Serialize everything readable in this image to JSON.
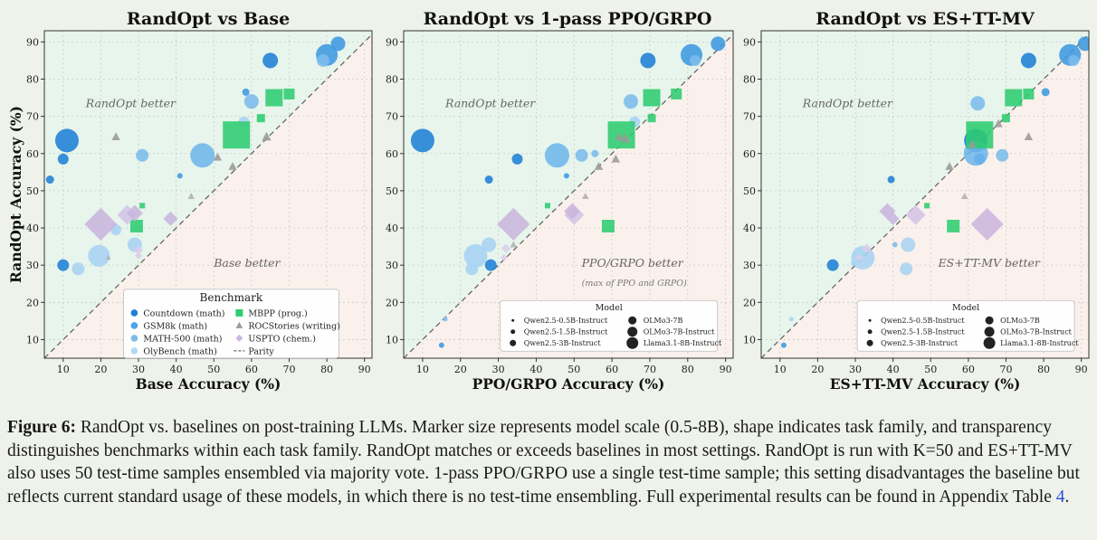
{
  "chart_data": [
    {
      "type": "scatter",
      "title": "RandOpt vs Base",
      "xlabel": "Base Accuracy (%)",
      "ylabel": "RandOpt Accuracy (%)",
      "xlim": [
        5,
        92
      ],
      "ylim": [
        5,
        93
      ],
      "xticks": [
        10,
        20,
        30,
        40,
        50,
        60,
        70,
        80,
        90
      ],
      "yticks": [
        10,
        20,
        30,
        40,
        50,
        60,
        70,
        80,
        90
      ],
      "region_top": "RandOpt better",
      "region_bottom": "Base better",
      "region_bottom_sub": "",
      "legend": {
        "kind": "benchmark",
        "title": "Benchmark",
        "entries": [
          {
            "label": "Countdown (math)",
            "marker": "circle",
            "color": "#1f7fd6"
          },
          {
            "label": "MBPP (prog.)",
            "marker": "square",
            "color": "#2ecc71"
          },
          {
            "label": "GSM8k (math)",
            "marker": "circle",
            "color": "#4da3e6"
          },
          {
            "label": "ROCStories (writing)",
            "marker": "triangle",
            "color": "#9a9a9a"
          },
          {
            "label": "MATH-500 (math)",
            "marker": "circle",
            "color": "#7cbcec"
          },
          {
            "label": "USPTO (chem.)",
            "marker": "diamond",
            "color": "#c9b5dd"
          },
          {
            "label": "OlyBench (math)",
            "marker": "circle",
            "color": "#b3daf5"
          },
          {
            "label": "Parity",
            "marker": "line",
            "color": "#666666"
          }
        ]
      },
      "points": [
        {
          "x": 11,
          "y": 63.5,
          "s": 13,
          "m": "circle",
          "c": "#1f7fd6"
        },
        {
          "x": 65,
          "y": 85,
          "s": 8.5,
          "m": "circle",
          "c": "#1f7fd6"
        },
        {
          "x": 83,
          "y": 89.5,
          "s": 8,
          "m": "circle",
          "c": "#3d98e0"
        },
        {
          "x": 80,
          "y": 86.5,
          "s": 12,
          "m": "circle",
          "c": "#3d98e0"
        },
        {
          "x": 79,
          "y": 85,
          "s": 7,
          "m": "circle",
          "c": "#7cbcec"
        },
        {
          "x": 10,
          "y": 58.5,
          "s": 6,
          "m": "circle",
          "c": "#1f7fd6"
        },
        {
          "x": 6.5,
          "y": 53,
          "s": 4.5,
          "m": "circle",
          "c": "#1f7fd6"
        },
        {
          "x": 10,
          "y": 30,
          "s": 6.5,
          "m": "circle",
          "c": "#1f7fd6"
        },
        {
          "x": 14,
          "y": 29,
          "s": 7,
          "m": "circle",
          "c": "#a8d3f2"
        },
        {
          "x": 24,
          "y": 39.5,
          "s": 6,
          "m": "circle",
          "c": "#a8d3f2"
        },
        {
          "x": 19.5,
          "y": 32.5,
          "s": 12,
          "m": "circle",
          "c": "#a8d3f2"
        },
        {
          "x": 29,
          "y": 35.5,
          "s": 8,
          "m": "circle",
          "c": "#a8d3f2"
        },
        {
          "x": 31,
          "y": 59.5,
          "s": 7,
          "m": "circle",
          "c": "#7cbcec"
        },
        {
          "x": 47,
          "y": 59.5,
          "s": 13.5,
          "m": "circle",
          "c": "#6fb6ea"
        },
        {
          "x": 58.5,
          "y": 76.5,
          "s": 4,
          "m": "circle",
          "c": "#3d98e0"
        },
        {
          "x": 60,
          "y": 74,
          "s": 8,
          "m": "circle",
          "c": "#7cbcec"
        },
        {
          "x": 58,
          "y": 68.5,
          "s": 6,
          "m": "circle",
          "c": "#a8d3f2"
        },
        {
          "x": 41,
          "y": 54,
          "s": 3,
          "m": "circle",
          "c": "#3d98e0"
        },
        {
          "x": 56,
          "y": 65,
          "s": 15,
          "m": "square",
          "c": "#2ecc71"
        },
        {
          "x": 66,
          "y": 75,
          "s": 9.5,
          "m": "square",
          "c": "#2ecc71"
        },
        {
          "x": 70,
          "y": 76,
          "s": 6,
          "m": "square",
          "c": "#2ecc71"
        },
        {
          "x": 62.5,
          "y": 69.5,
          "s": 4.5,
          "m": "square",
          "c": "#2ecc71"
        },
        {
          "x": 29.5,
          "y": 40.5,
          "s": 7,
          "m": "square",
          "c": "#2ecc71"
        },
        {
          "x": 31,
          "y": 46,
          "s": 3,
          "m": "square",
          "c": "#2ecc71"
        },
        {
          "x": 24,
          "y": 64.5,
          "s": 5,
          "m": "triangle",
          "c": "#9a9a9a"
        },
        {
          "x": 64,
          "y": 64.5,
          "s": 5.5,
          "m": "triangle",
          "c": "#9a9a9a"
        },
        {
          "x": 51,
          "y": 59,
          "s": 5,
          "m": "triangle",
          "c": "#9a9a9a"
        },
        {
          "x": 55,
          "y": 56.5,
          "s": 5,
          "m": "triangle",
          "c": "#9a9a9a"
        },
        {
          "x": 44,
          "y": 48.5,
          "s": 4,
          "m": "triangle",
          "c": "#b0b0b0"
        },
        {
          "x": 22,
          "y": 32,
          "s": 3,
          "m": "triangle",
          "c": "#b0b0b0"
        },
        {
          "x": 20,
          "y": 41,
          "s": 18,
          "m": "diamond",
          "c": "#c9b5dd"
        },
        {
          "x": 27,
          "y": 43.5,
          "s": 11,
          "m": "diamond",
          "c": "#d4c3e6"
        },
        {
          "x": 29,
          "y": 44,
          "s": 9,
          "m": "diamond",
          "c": "#c9b5dd"
        },
        {
          "x": 38.5,
          "y": 42.5,
          "s": 8,
          "m": "diamond",
          "c": "#c9b5dd"
        },
        {
          "x": 30,
          "y": 34,
          "s": 5,
          "m": "diamond",
          "c": "#dccdea"
        },
        {
          "x": 30,
          "y": 32.5,
          "s": 4,
          "m": "diamond",
          "c": "#dccdea"
        }
      ]
    },
    {
      "type": "scatter",
      "title": "RandOpt vs 1-pass PPO/GRPO",
      "xlabel": "PPO/GRPO Accuracy (%)",
      "ylabel": "",
      "xlim": [
        5,
        92
      ],
      "ylim": [
        5,
        93
      ],
      "xticks": [
        10,
        20,
        30,
        40,
        50,
        60,
        70,
        80,
        90
      ],
      "yticks": [
        10,
        20,
        30,
        40,
        50,
        60,
        70,
        80,
        90
      ],
      "region_top": "RandOpt better",
      "region_bottom": "PPO/GRPO better",
      "region_bottom_sub": "(max of PPO and GRPO)",
      "legend": {
        "kind": "model",
        "title": "Model",
        "entries": [
          {
            "label": "Qwen2.5-0.5B-Instruct",
            "r": 1.5
          },
          {
            "label": "OLMo3-7B",
            "r": 4.5
          },
          {
            "label": "Qwen2.5-1.5B-Instruct",
            "r": 2.5
          },
          {
            "label": "OLMo3-7B-Instruct",
            "r": 5.5
          },
          {
            "label": "Qwen2.5-3B-Instruct",
            "r": 3.5
          },
          {
            "label": "Llama3.1-8B-Instruct",
            "r": 6.5
          }
        ]
      },
      "points": [
        {
          "x": 10,
          "y": 63.5,
          "s": 13,
          "m": "circle",
          "c": "#1f7fd6"
        },
        {
          "x": 69.5,
          "y": 85,
          "s": 8.5,
          "m": "circle",
          "c": "#1f7fd6"
        },
        {
          "x": 88,
          "y": 89.5,
          "s": 8,
          "m": "circle",
          "c": "#3d98e0"
        },
        {
          "x": 81,
          "y": 86.5,
          "s": 12,
          "m": "circle",
          "c": "#3d98e0"
        },
        {
          "x": 82,
          "y": 85,
          "s": 6,
          "m": "circle",
          "c": "#7cbcec"
        },
        {
          "x": 35,
          "y": 58.5,
          "s": 6,
          "m": "circle",
          "c": "#1f7fd6"
        },
        {
          "x": 27.5,
          "y": 53,
          "s": 4.5,
          "m": "circle",
          "c": "#1f7fd6"
        },
        {
          "x": 28,
          "y": 30,
          "s": 6.5,
          "m": "circle",
          "c": "#1f7fd6"
        },
        {
          "x": 15,
          "y": 8.5,
          "s": 3,
          "m": "circle",
          "c": "#3d98e0"
        },
        {
          "x": 16,
          "y": 15.5,
          "s": 2.5,
          "m": "circle",
          "c": "#7cbcec"
        },
        {
          "x": 23,
          "y": 29,
          "s": 7,
          "m": "circle",
          "c": "#a8d3f2"
        },
        {
          "x": 24,
          "y": 32.5,
          "s": 13,
          "m": "circle",
          "c": "#a8d3f2"
        },
        {
          "x": 27.5,
          "y": 35.5,
          "s": 8,
          "m": "circle",
          "c": "#a8d3f2"
        },
        {
          "x": 52,
          "y": 59.5,
          "s": 7,
          "m": "circle",
          "c": "#7cbcec"
        },
        {
          "x": 45.5,
          "y": 59.5,
          "s": 13.5,
          "m": "circle",
          "c": "#6fb6ea"
        },
        {
          "x": 65,
          "y": 74,
          "s": 8,
          "m": "circle",
          "c": "#7cbcec"
        },
        {
          "x": 66,
          "y": 68.5,
          "s": 6,
          "m": "circle",
          "c": "#a8d3f2"
        },
        {
          "x": 48,
          "y": 54,
          "s": 3,
          "m": "circle",
          "c": "#3d98e0"
        },
        {
          "x": 55.5,
          "y": 60,
          "s": 4,
          "m": "circle",
          "c": "#7cbcec"
        },
        {
          "x": 62.5,
          "y": 65,
          "s": 15,
          "m": "square",
          "c": "#2ecc71"
        },
        {
          "x": 70.5,
          "y": 75,
          "s": 9.5,
          "m": "square",
          "c": "#2ecc71"
        },
        {
          "x": 77,
          "y": 76,
          "s": 6,
          "m": "square",
          "c": "#2ecc71"
        },
        {
          "x": 70.5,
          "y": 69.5,
          "s": 4.5,
          "m": "square",
          "c": "#2ecc71"
        },
        {
          "x": 59,
          "y": 40.5,
          "s": 7,
          "m": "square",
          "c": "#2ecc71"
        },
        {
          "x": 43,
          "y": 46,
          "s": 3,
          "m": "square",
          "c": "#2ecc71"
        },
        {
          "x": 62,
          "y": 64.5,
          "s": 5,
          "m": "triangle",
          "c": "#9a9a9a"
        },
        {
          "x": 63.5,
          "y": 64,
          "s": 5.5,
          "m": "triangle",
          "c": "#9a9a9a"
        },
        {
          "x": 61,
          "y": 58.5,
          "s": 5,
          "m": "triangle",
          "c": "#9a9a9a"
        },
        {
          "x": 56.5,
          "y": 56.5,
          "s": 5,
          "m": "triangle",
          "c": "#9a9a9a"
        },
        {
          "x": 53,
          "y": 48.5,
          "s": 4,
          "m": "triangle",
          "c": "#b0b0b0"
        },
        {
          "x": 34,
          "y": 41,
          "s": 18,
          "m": "diamond",
          "c": "#c9b5dd"
        },
        {
          "x": 50,
          "y": 43.5,
          "s": 11,
          "m": "diamond",
          "c": "#d4c3e6"
        },
        {
          "x": 49.5,
          "y": 44.5,
          "s": 9,
          "m": "diamond",
          "c": "#c9b5dd"
        },
        {
          "x": 32,
          "y": 34.5,
          "s": 5,
          "m": "diamond",
          "c": "#dccdea"
        },
        {
          "x": 31.5,
          "y": 32,
          "s": 4,
          "m": "diamond",
          "c": "#dccdea"
        },
        {
          "x": 34,
          "y": 35.5,
          "s": 4,
          "m": "triangle",
          "c": "#b0b0b0"
        }
      ]
    },
    {
      "type": "scatter",
      "title": "RandOpt vs ES+TT-MV",
      "xlabel": "ES+TT-MV Accuracy (%)",
      "ylabel": "",
      "xlim": [
        5,
        92
      ],
      "ylim": [
        5,
        93
      ],
      "xticks": [
        10,
        20,
        30,
        40,
        50,
        60,
        70,
        80,
        90
      ],
      "yticks": [
        10,
        20,
        30,
        40,
        50,
        60,
        70,
        80,
        90
      ],
      "region_top": "RandOpt better",
      "region_bottom": "ES+TT-MV better",
      "region_bottom_sub": "",
      "legend": {
        "kind": "model",
        "title": "Model",
        "entries": [
          {
            "label": "Qwen2.5-0.5B-Instruct",
            "r": 1.5
          },
          {
            "label": "OLMo3-7B",
            "r": 4.5
          },
          {
            "label": "Qwen2.5-1.5B-Instruct",
            "r": 2.5
          },
          {
            "label": "OLMo3-7B-Instruct",
            "r": 5.5
          },
          {
            "label": "Qwen2.5-3B-Instruct",
            "r": 3.5
          },
          {
            "label": "Llama3.1-8B-Instruct",
            "r": 6.5
          }
        ]
      },
      "points": [
        {
          "x": 62,
          "y": 63.5,
          "s": 13,
          "m": "circle",
          "c": "#1f7fd6"
        },
        {
          "x": 76,
          "y": 85,
          "s": 8.5,
          "m": "circle",
          "c": "#1f7fd6"
        },
        {
          "x": 91,
          "y": 89.5,
          "s": 8,
          "m": "circle",
          "c": "#3d98e0"
        },
        {
          "x": 87,
          "y": 86.5,
          "s": 12,
          "m": "circle",
          "c": "#3d98e0"
        },
        {
          "x": 88,
          "y": 85,
          "s": 6,
          "m": "circle",
          "c": "#7cbcec"
        },
        {
          "x": 80.5,
          "y": 76.5,
          "s": 4.5,
          "m": "circle",
          "c": "#3d98e0"
        },
        {
          "x": 62.5,
          "y": 73.5,
          "s": 8,
          "m": "circle",
          "c": "#7cbcec"
        },
        {
          "x": 63,
          "y": 58.5,
          "s": 6,
          "m": "circle",
          "c": "#1f7fd6"
        },
        {
          "x": 62,
          "y": 60,
          "s": 13.5,
          "m": "circle",
          "c": "#6fb6ea"
        },
        {
          "x": 69,
          "y": 59.5,
          "s": 7,
          "m": "circle",
          "c": "#7cbcec"
        },
        {
          "x": 39.5,
          "y": 53,
          "s": 4,
          "m": "circle",
          "c": "#1f7fd6"
        },
        {
          "x": 24,
          "y": 30,
          "s": 6.5,
          "m": "circle",
          "c": "#1f7fd6"
        },
        {
          "x": 13,
          "y": 15.5,
          "s": 2.5,
          "m": "circle",
          "c": "#a8d3f2"
        },
        {
          "x": 11,
          "y": 8.5,
          "s": 3,
          "m": "circle",
          "c": "#3d98e0"
        },
        {
          "x": 32,
          "y": 32,
          "s": 13,
          "m": "circle",
          "c": "#a8d3f2"
        },
        {
          "x": 44,
          "y": 35.5,
          "s": 8,
          "m": "circle",
          "c": "#a8d3f2"
        },
        {
          "x": 43.5,
          "y": 29,
          "s": 7,
          "m": "circle",
          "c": "#a8d3f2"
        },
        {
          "x": 40.5,
          "y": 35.5,
          "s": 3,
          "m": "circle",
          "c": "#7cbcec"
        },
        {
          "x": 29.5,
          "y": 30.5,
          "s": 3,
          "m": "circle",
          "c": "#a8d3f2"
        },
        {
          "x": 63,
          "y": 65,
          "s": 15,
          "m": "square",
          "c": "#2ecc71"
        },
        {
          "x": 72,
          "y": 75,
          "s": 9.5,
          "m": "square",
          "c": "#2ecc71"
        },
        {
          "x": 76,
          "y": 76,
          "s": 6,
          "m": "square",
          "c": "#2ecc71"
        },
        {
          "x": 70,
          "y": 69.5,
          "s": 4.5,
          "m": "square",
          "c": "#2ecc71"
        },
        {
          "x": 56,
          "y": 40.5,
          "s": 7,
          "m": "square",
          "c": "#2ecc71"
        },
        {
          "x": 49,
          "y": 46,
          "s": 3,
          "m": "square",
          "c": "#2ecc71"
        },
        {
          "x": 76,
          "y": 64.5,
          "s": 5,
          "m": "triangle",
          "c": "#9a9a9a"
        },
        {
          "x": 61,
          "y": 62.5,
          "s": 5,
          "m": "triangle",
          "c": "#9a9a9a"
        },
        {
          "x": 55,
          "y": 56.5,
          "s": 5,
          "m": "triangle",
          "c": "#9a9a9a"
        },
        {
          "x": 68,
          "y": 68,
          "s": 5,
          "m": "triangle",
          "c": "#9a9a9a"
        },
        {
          "x": 59,
          "y": 48.5,
          "s": 4,
          "m": "triangle",
          "c": "#b0b0b0"
        },
        {
          "x": 65,
          "y": 41,
          "s": 18,
          "m": "diamond",
          "c": "#c9b5dd"
        },
        {
          "x": 46,
          "y": 43.5,
          "s": 11,
          "m": "diamond",
          "c": "#d4c3e6"
        },
        {
          "x": 38.5,
          "y": 44.5,
          "s": 9,
          "m": "diamond",
          "c": "#c9b5dd"
        },
        {
          "x": 40,
          "y": 42.5,
          "s": 7,
          "m": "diamond",
          "c": "#c9b5dd"
        },
        {
          "x": 33,
          "y": 34.5,
          "s": 5,
          "m": "diamond",
          "c": "#dccdea"
        },
        {
          "x": 31,
          "y": 32,
          "s": 4,
          "m": "diamond",
          "c": "#dccdea"
        }
      ]
    }
  ],
  "caption": {
    "label": "Figure 6:",
    "text_before_ref": " RandOpt vs. baselines on post-training LLMs. Marker size represents model scale (0.5-8B), shape indicates task family, and transparency distinguishes benchmarks within each task family. RandOpt matches or exceeds baselines in most settings. RandOpt is run with K=50 and ES+TT-MV also uses 50 test-time samples ensembled via majority vote. 1-pass PPO/GRPO use a single test-time sample; this setting disadvantages the baseline but reflects current standard usage of these models, in which there is no test-time ensembling. Full experimental results can be found in Appendix Table ",
    "ref": "4",
    "text_after_ref": "."
  }
}
